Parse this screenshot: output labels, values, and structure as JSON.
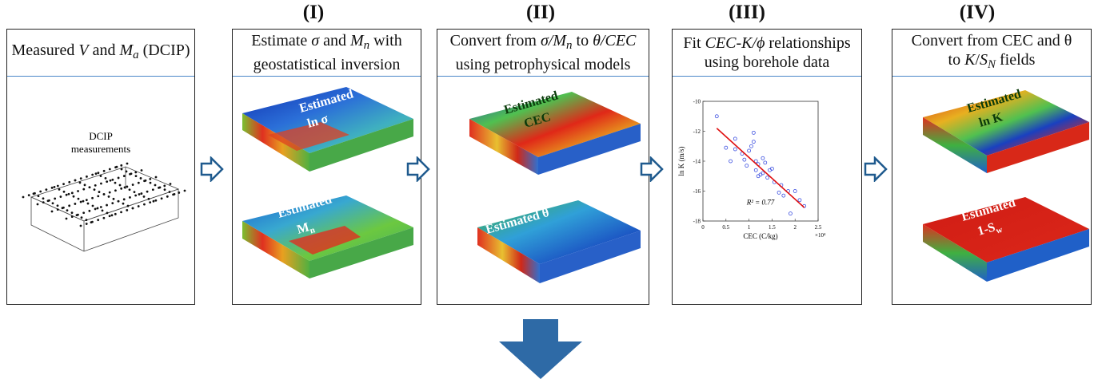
{
  "stages": [
    {
      "id": "I",
      "label": "(I)"
    },
    {
      "id": "II",
      "label": "(II)"
    },
    {
      "id": "III",
      "label": "(III)"
    },
    {
      "id": "IV",
      "label": "(IV)"
    }
  ],
  "panels": {
    "measured": {
      "title_pre": "Measured ",
      "title_v": "V",
      "title_mid": " and ",
      "title_m": "M",
      "title_sub": "a",
      "title_post": " (DCIP)",
      "body_line1": "DCIP",
      "body_line2": "measurements"
    },
    "estimate": {
      "line1_pre": "Estimate ",
      "line1_sigma": "σ",
      "line1_mid": " and ",
      "line1_m": "M",
      "line1_sub": "n",
      "line1_post": " with",
      "line2": "geostatistical inversion",
      "block1_l1": "Estimated",
      "block1_l2": "ln σ",
      "block2_l1": "Estimated",
      "block2_l2": "M",
      "block2_sub": "n"
    },
    "convert": {
      "line1_pre": "Convert from ",
      "line1_a": "σ/M",
      "line1_sub": "n",
      "line1_mid": " to ",
      "line1_b": "θ/CEC",
      "line2": "using petrophysical models",
      "block1_l1": "Estimated",
      "block1_l2": "CEC",
      "block2_l1": "Estimated θ"
    },
    "fit": {
      "line1_pre": "Fit ",
      "line1_a": "CEC-K/ϕ",
      "line1_post": " relationships",
      "line2": "using borehole data"
    },
    "final": {
      "line1": "Convert from CEC and θ",
      "line2_pre": "to ",
      "line2_k": "K",
      "line2_slash": "/",
      "line2_s": "S",
      "line2_sub": "N",
      "line2_post": " fields",
      "block1_l1": "Estimated",
      "block1_l2": "ln K",
      "block2_l1": "Estimated",
      "block2_l2": "1-S",
      "block2_sub": "w"
    }
  },
  "chart_data": {
    "type": "scatter",
    "xlabel": "CEC (C/kg)",
    "ylabel": "ln K (m/s)",
    "x_multiplier_label": "×10⁴",
    "xlim": [
      0,
      2.5
    ],
    "ylim": [
      -18,
      -10
    ],
    "xticks": [
      "0",
      "0.5",
      "1",
      "1.5",
      "2",
      "2.5"
    ],
    "yticks": [
      "-10",
      "-12",
      "-14",
      "-16",
      "-18"
    ],
    "annotation": "R² = 0.77",
    "points": [
      [
        0.3,
        -11.0
      ],
      [
        0.5,
        -13.1
      ],
      [
        0.6,
        -14.0
      ],
      [
        0.7,
        -12.5
      ],
      [
        0.7,
        -13.2
      ],
      [
        0.85,
        -13.5
      ],
      [
        0.9,
        -13.9
      ],
      [
        0.95,
        -14.3
      ],
      [
        1.0,
        -13.3
      ],
      [
        1.05,
        -13.0
      ],
      [
        1.1,
        -12.1
      ],
      [
        1.1,
        -12.7
      ],
      [
        1.15,
        -14.0
      ],
      [
        1.15,
        -14.6
      ],
      [
        1.2,
        -15.0
      ],
      [
        1.2,
        -14.2
      ],
      [
        1.25,
        -14.9
      ],
      [
        1.3,
        -13.8
      ],
      [
        1.3,
        -14.8
      ],
      [
        1.35,
        -14.1
      ],
      [
        1.4,
        -15.1
      ],
      [
        1.45,
        -14.6
      ],
      [
        1.5,
        -14.5
      ],
      [
        1.55,
        -15.4
      ],
      [
        1.65,
        -16.1
      ],
      [
        1.7,
        -15.6
      ],
      [
        1.75,
        -16.3
      ],
      [
        1.85,
        -16.0
      ],
      [
        1.9,
        -17.5
      ],
      [
        2.0,
        -16.0
      ],
      [
        2.1,
        -16.6
      ],
      [
        2.2,
        -17.0
      ]
    ],
    "fit_line": [
      [
        0.3,
        -11.8
      ],
      [
        2.2,
        -17.1
      ]
    ],
    "colors": {
      "points": "#3b4ee0",
      "fit": "#e01010"
    }
  },
  "colors": {
    "arrow": "#1f5a8e",
    "header_rule": "#4a86c8"
  }
}
